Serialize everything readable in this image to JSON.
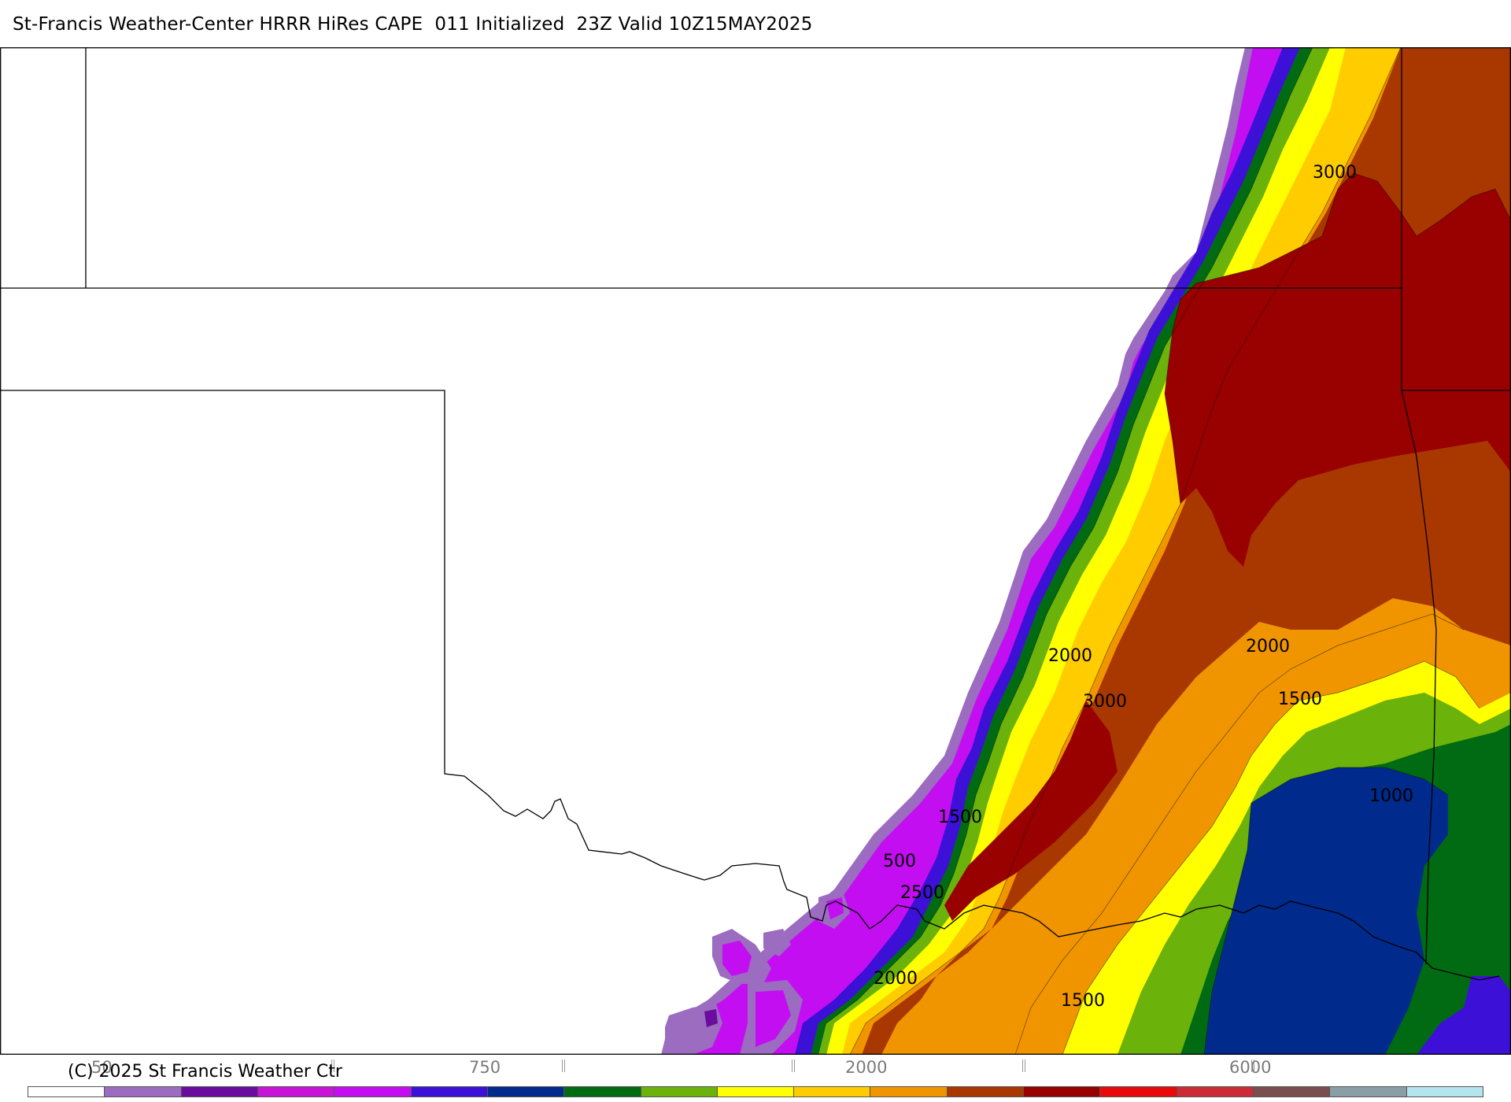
{
  "title": "St-Francis Weather-Center HRRR HiRes CAPE  011 Initialized  23Z Valid 10Z15MAY2025",
  "copyright": "(C) 2025 St Francis Weather Ctr",
  "contour_labels": [
    "3000",
    "2000",
    "3000",
    "2000",
    "1500",
    "1000",
    "1500",
    "500",
    "2500",
    "2000",
    "1500"
  ],
  "colorbar": {
    "labels": [
      "50",
      "750",
      "2000",
      "6000"
    ],
    "colors": [
      "#ffffff",
      "#9b6cbf",
      "#6a0c9e",
      "#c814d6",
      "#c40ef2",
      "#3c10d6",
      "#002a8c",
      "#006b12",
      "#6bb20a",
      "#ffff00",
      "#ffcc00",
      "#f09500",
      "#a93800",
      "#990000",
      "#e80a0a",
      "#cc2a36",
      "#7a4e4e",
      "#8a9fa5",
      "#b4e4ee"
    ]
  },
  "colors": {
    "cape_500": "#9b6cbf",
    "cape_750": "#c814d6",
    "cape_1000": "#002a8c",
    "cape_1500": "#ffff00",
    "cape_2000": "#f09500",
    "cape_2500": "#a93800",
    "cape_3000": "#990000"
  }
}
